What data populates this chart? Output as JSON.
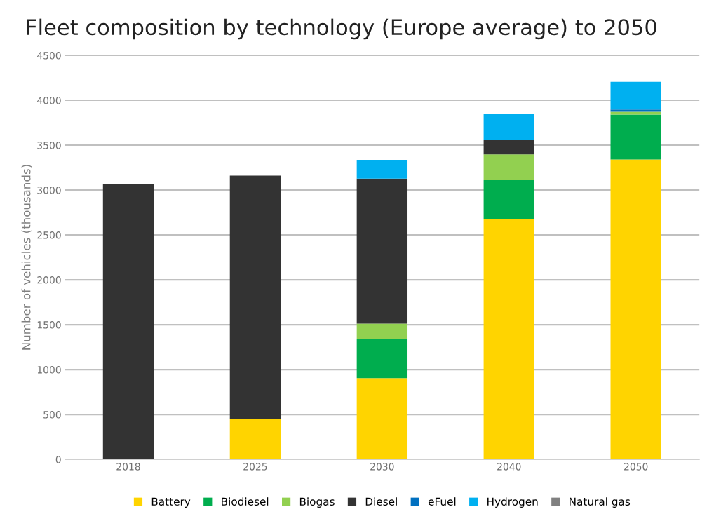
{
  "chart_data": {
    "type": "bar",
    "title": "Fleet composition by technology (Europe average) to 2050",
    "ylabel": "Number of vehicles (thousands)",
    "categories": [
      "2018",
      "2025",
      "2030",
      "2040",
      "2050"
    ],
    "stacked": true,
    "series": [
      {
        "name": "Battery",
        "color": "#ffd400",
        "values": [
          0,
          448,
          906,
          2677,
          3341
        ]
      },
      {
        "name": "Biodiesel",
        "color": "#00ad4e",
        "values": [
          0,
          0,
          435,
          435,
          500
        ]
      },
      {
        "name": "Biogas",
        "color": "#92d050",
        "values": [
          0,
          0,
          172,
          286,
          31
        ]
      },
      {
        "name": "Diesel",
        "color": "#333333",
        "values": [
          3070,
          2712,
          1614,
          162,
          0
        ]
      },
      {
        "name": "eFuel",
        "color": "#0070c0",
        "values": [
          0,
          0,
          0,
          0,
          26
        ]
      },
      {
        "name": "Hydrogen",
        "color": "#00b0f0",
        "values": [
          0,
          0,
          209,
          289,
          307
        ]
      },
      {
        "name": "Natural gas",
        "color": "#808080",
        "values": [
          0,
          0,
          0,
          0,
          0
        ]
      }
    ],
    "ylim": [
      0,
      4500
    ],
    "yticks": [
      0,
      500,
      1000,
      1500,
      2000,
      2500,
      3000,
      3500,
      4000,
      4500
    ],
    "grid": "y",
    "legend": "bottom"
  }
}
